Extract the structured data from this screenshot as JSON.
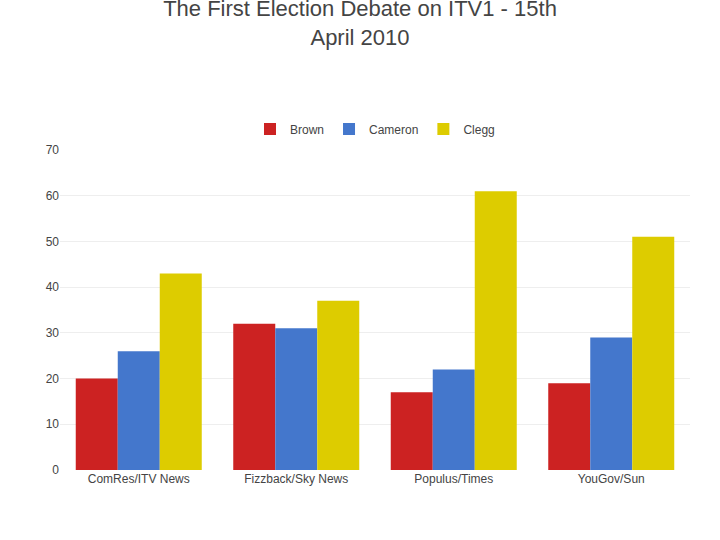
{
  "chart_data": {
    "type": "bar",
    "title": "The First Election Debate on ITV1 - 15th",
    "subtitle": "April 2010",
    "categories": [
      "ComRes/ITV News",
      "Fizzback/Sky News",
      "Populus/Times",
      "YouGov/Sun"
    ],
    "series": [
      {
        "name": "Brown",
        "color": "#cc2222",
        "values": [
          20,
          32,
          17,
          19
        ]
      },
      {
        "name": "Cameron",
        "color": "#4477cc",
        "values": [
          26,
          31,
          22,
          29
        ]
      },
      {
        "name": "Clegg",
        "color": "#ddcc00",
        "values": [
          43,
          37,
          61,
          51
        ]
      }
    ],
    "ylim": [
      0,
      70
    ],
    "yticks": [
      0,
      10,
      20,
      30,
      40,
      50,
      60,
      70
    ],
    "grid": true,
    "legend": "upper center"
  }
}
